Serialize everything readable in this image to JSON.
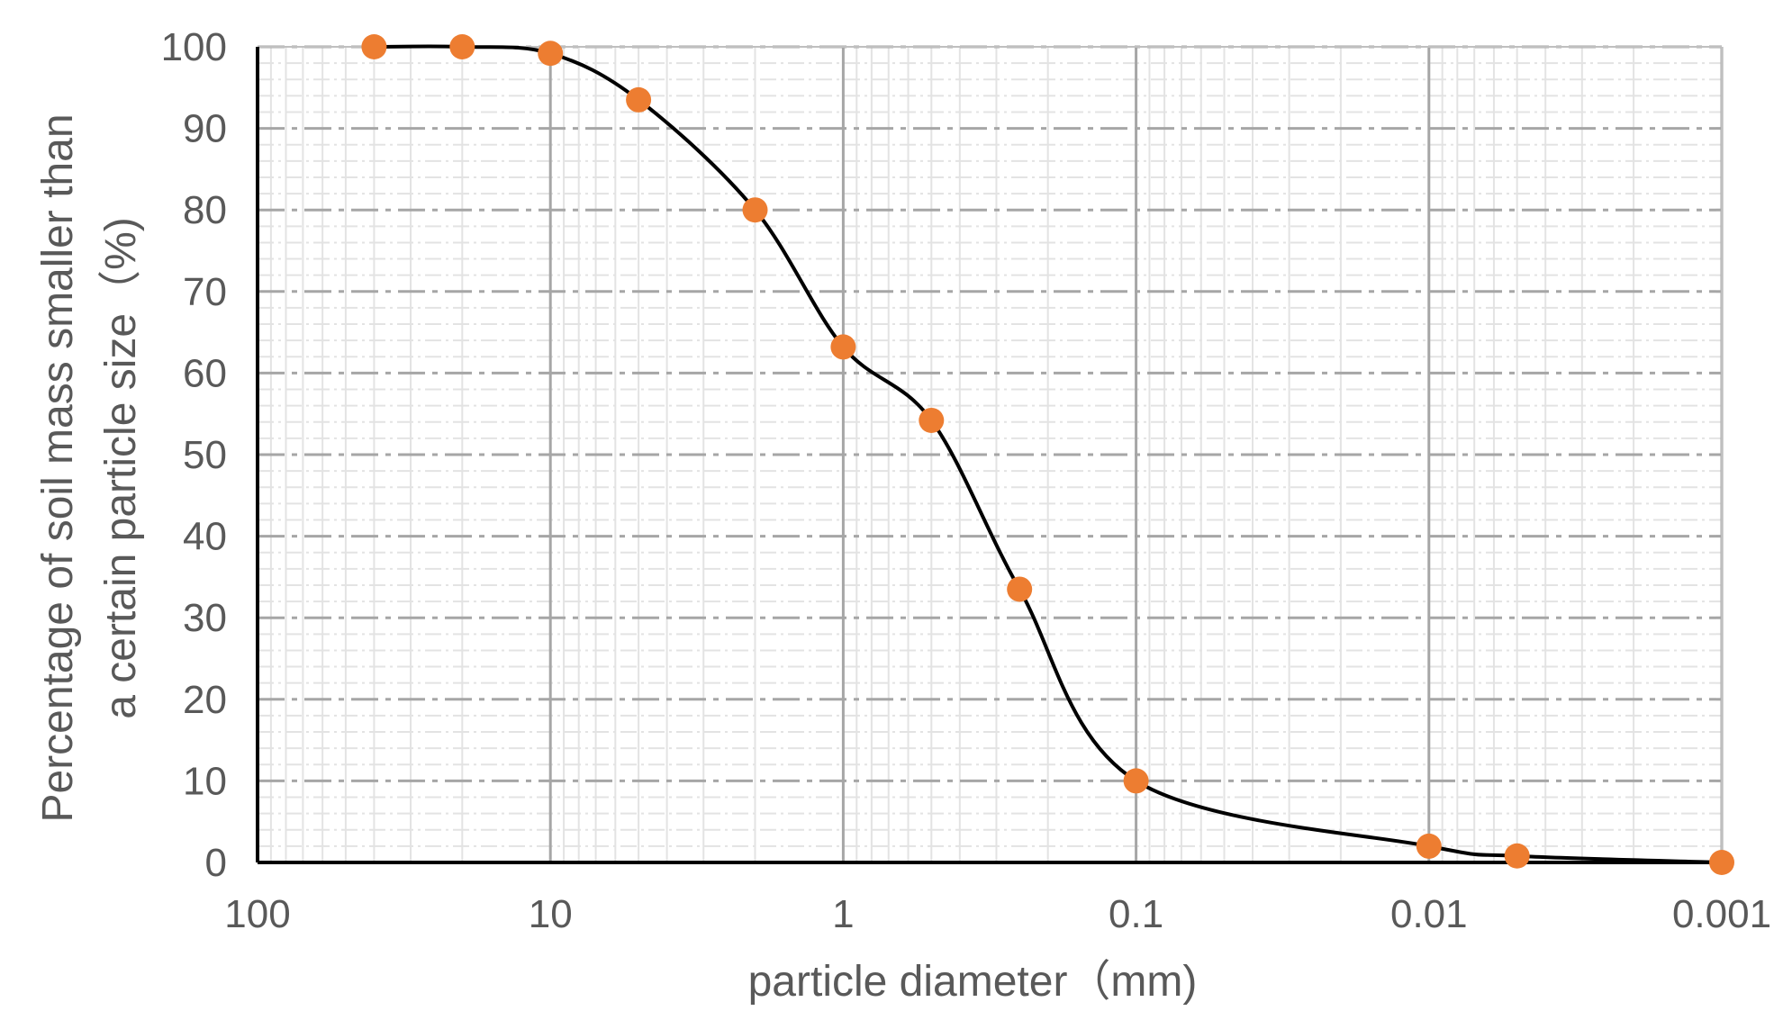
{
  "chart_data": {
    "type": "scatter",
    "title": "",
    "xlabel": "particle diameter（mm)",
    "ylabel_line1": "Percentage of soil mass smaller than",
    "ylabel_line2": "a certain particle size（%)",
    "x_scale": "log",
    "x_reversed": true,
    "xlim": [
      100,
      0.001
    ],
    "ylim": [
      0,
      100
    ],
    "x_ticks": [
      100,
      10,
      1,
      0.1,
      0.01,
      0.001
    ],
    "x_tick_labels": [
      "100",
      "10",
      "1",
      "0.1",
      "0.01",
      "0.001"
    ],
    "y_ticks": [
      0,
      10,
      20,
      30,
      40,
      50,
      60,
      70,
      80,
      90,
      100
    ],
    "y_tick_labels": [
      "0",
      "10",
      "20",
      "30",
      "40",
      "50",
      "60",
      "70",
      "80",
      "90",
      "100"
    ],
    "grid": true,
    "series": [
      {
        "x": [
          40,
          20,
          10,
          5,
          2,
          1,
          0.5,
          0.25,
          0.1,
          0.01,
          0.005,
          0.001
        ],
        "y": [
          100,
          100,
          99.2,
          93.5,
          80,
          63.2,
          54.2,
          33.5,
          10,
          2,
          0.8,
          0
        ],
        "marker_color": "#ed7d31",
        "line_color": "#000000",
        "smooth": true
      }
    ]
  }
}
